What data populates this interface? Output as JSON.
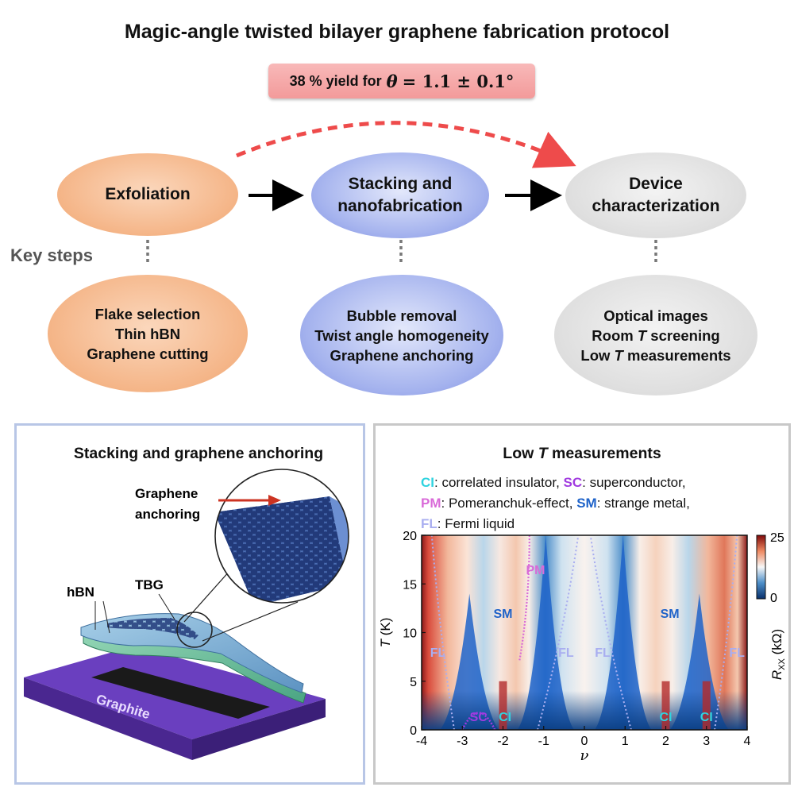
{
  "title": "Magic-angle twisted bilayer graphene fabrication protocol",
  "yield": {
    "text": "38 % yield for",
    "theta": "θ",
    "value": "= 1.1 ± 0.1°"
  },
  "key_steps_label": "Key steps",
  "stages": [
    {
      "name": "Exfoliation",
      "steps": [
        "Flake selection",
        "Thin hBN",
        "Graphene cutting"
      ]
    },
    {
      "name_line1": "Stacking and",
      "name_line2": "nanofabrication",
      "steps": [
        "Bubble removal",
        "Twist angle homogeneity",
        "Graphene anchoring"
      ]
    },
    {
      "name_line1": "Device",
      "name_line2": "characterization",
      "steps": [
        "Optical images",
        "Room ",
        "Low "
      ]
    }
  ],
  "stage3_steps_tail": {
    "room": " screening",
    "low": " measurements",
    "T": "T"
  },
  "left_panel": {
    "title": "Stacking and graphene anchoring",
    "labels": {
      "anchoring_1": "Graphene",
      "anchoring_2": "anchoring",
      "hbn": "hBN",
      "tbg": "TBG",
      "graphite": "Graphite"
    }
  },
  "right_panel": {
    "title_pre": "Low ",
    "title_T": "T",
    "title_post": " measurements",
    "legend": [
      {
        "abbr": "CI",
        "desc": ": correlated insulator, ",
        "color": "#2fd3df"
      },
      {
        "abbr": "SC",
        "desc": ": superconductor,",
        "color": "#a13be0"
      },
      {
        "abbr": "PM",
        "desc": ": Pomeranchuk-effect, ",
        "color": "#d96ad8"
      },
      {
        "abbr": "SM",
        "desc": ": strange metal,",
        "color": "#1f63c9"
      },
      {
        "abbr": "FL",
        "desc": ": Fermi liquid",
        "color": "#a9aef0"
      }
    ]
  },
  "chart_data": {
    "type": "heatmap",
    "xlabel": "ν",
    "ylabel": "T (K)",
    "xlim": [
      -4,
      4
    ],
    "ylim": [
      0,
      20
    ],
    "xticks": [
      "-4",
      "-3",
      "-2",
      "-1",
      "0",
      "1",
      "2",
      "3",
      "4"
    ],
    "yticks": [
      "0",
      "5",
      "10",
      "15",
      "20"
    ],
    "colorbar": {
      "label": "R_XX (kΩ)",
      "min": 0,
      "max": 25,
      "ticks": [
        "0",
        "25"
      ]
    },
    "region_labels": [
      {
        "text": "PM",
        "nu": -1.2,
        "T": 16.5,
        "color": "#d96ad8"
      },
      {
        "text": "SM",
        "nu": -2.0,
        "T": 12.0,
        "color": "#1f63c9"
      },
      {
        "text": "SM",
        "nu": 2.1,
        "T": 12.0,
        "color": "#1f63c9"
      },
      {
        "text": "FL",
        "nu": -3.6,
        "T": 8.0,
        "color": "#a9aef0"
      },
      {
        "text": "FL",
        "nu": -0.45,
        "T": 8.0,
        "color": "#a9aef0"
      },
      {
        "text": "FL",
        "nu": 0.45,
        "T": 8.0,
        "color": "#a9aef0"
      },
      {
        "text": "FL",
        "nu": 3.75,
        "T": 8.0,
        "color": "#a9aef0"
      },
      {
        "text": "SC",
        "nu": -2.6,
        "T": 1.4,
        "color": "#a13be0"
      },
      {
        "text": "CI",
        "nu": -1.95,
        "T": 1.4,
        "color": "#2fd3df"
      },
      {
        "text": "CI",
        "nu": 2.0,
        "T": 1.4,
        "color": "#2fd3df"
      },
      {
        "text": "CI",
        "nu": 3.0,
        "T": 1.4,
        "color": "#2fd3df"
      }
    ]
  },
  "colors": {
    "arrow_dashed": "#ee4b4b",
    "orange": "#f4b283",
    "blue": "#a5b3ee",
    "gray": "#dedede"
  }
}
